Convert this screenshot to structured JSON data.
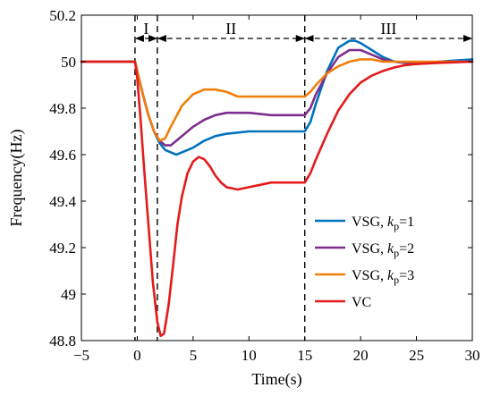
{
  "chart_data": {
    "type": "line",
    "title": "",
    "xlabel": "Time(s)",
    "ylabel": "Frequency(Hz)",
    "xlim": [
      -5,
      30
    ],
    "ylim": [
      48.8,
      50.2
    ],
    "xticks": [
      -5,
      0,
      5,
      10,
      15,
      20,
      25,
      30
    ],
    "xtick_labels": [
      "−5",
      "0",
      "5",
      "10",
      "15",
      "20",
      "25",
      "30"
    ],
    "yticks": [
      48.8,
      49,
      49.2,
      49.4,
      49.6,
      49.8,
      50,
      50.2
    ],
    "ytick_labels": [
      "48.8",
      "49",
      "49.2",
      "49.4",
      "49.6",
      "49.8",
      "50",
      "50.2"
    ],
    "grid": false,
    "legend_position": "lower-right",
    "regions": [
      {
        "label": "I",
        "x_start": -0.2,
        "x_end": 1.8
      },
      {
        "label": "II",
        "x_start": 1.8,
        "x_end": 15
      },
      {
        "label": "III",
        "x_start": 15,
        "x_end": 30
      }
    ],
    "dashed_lines_x": [
      -0.2,
      1.8,
      15
    ],
    "series": [
      {
        "name_prefix": "VSG, ",
        "name_var": "k",
        "name_sub": "p",
        "name_suffix": "=1",
        "color": "#0072BD",
        "x": [
          -5,
          -0.2,
          0,
          0.5,
          1,
          1.5,
          2,
          2.5,
          3,
          3.5,
          4,
          5,
          6,
          7,
          8,
          10,
          12,
          14,
          15,
          15.5,
          16,
          17,
          18,
          19,
          19.5,
          20,
          21,
          22,
          23,
          25,
          27,
          30
        ],
        "y": [
          50,
          50,
          49.96,
          49.86,
          49.77,
          49.7,
          49.65,
          49.62,
          49.61,
          49.6,
          49.61,
          49.63,
          49.66,
          49.68,
          49.69,
          49.7,
          49.7,
          49.7,
          49.7,
          49.74,
          49.82,
          49.96,
          50.06,
          50.09,
          50.09,
          50.08,
          50.05,
          50.02,
          50.0,
          49.99,
          50.0,
          50.01
        ]
      },
      {
        "name_prefix": "VSG, ",
        "name_var": "k",
        "name_sub": "p",
        "name_suffix": "=2",
        "color": "#7E2F8E",
        "x": [
          -5,
          -0.2,
          0,
          0.5,
          1,
          1.5,
          2,
          2.5,
          3,
          4,
          5,
          6,
          7,
          8,
          10,
          12,
          14,
          15,
          15.5,
          16,
          17,
          18,
          19,
          20,
          21,
          22,
          23,
          25,
          27,
          30
        ],
        "y": [
          50,
          50,
          49.96,
          49.86,
          49.77,
          49.7,
          49.66,
          49.64,
          49.64,
          49.68,
          49.72,
          49.75,
          49.77,
          49.78,
          49.78,
          49.77,
          49.77,
          49.77,
          49.8,
          49.86,
          49.95,
          50.02,
          50.05,
          50.05,
          50.03,
          50.01,
          50.0,
          49.99,
          50.0,
          50.0
        ]
      },
      {
        "name_prefix": "VSG, ",
        "name_var": "k",
        "name_sub": "p",
        "name_suffix": "=3",
        "color": "#F07F0A",
        "x": [
          -5,
          -0.2,
          0,
          0.5,
          1,
          1.5,
          2,
          2.5,
          3,
          4,
          5,
          6,
          7,
          8,
          9,
          10,
          12,
          14,
          15,
          15.5,
          16,
          17,
          18,
          19,
          20,
          21,
          22,
          23,
          25,
          30
        ],
        "y": [
          50,
          50,
          49.96,
          49.86,
          49.77,
          49.7,
          49.66,
          49.67,
          49.72,
          49.81,
          49.86,
          49.88,
          49.88,
          49.87,
          49.85,
          49.85,
          49.85,
          49.85,
          49.85,
          49.87,
          49.9,
          49.95,
          49.98,
          50.0,
          50.01,
          50.01,
          50.0,
          50.0,
          50.0,
          50.0
        ]
      },
      {
        "name": "VC",
        "color": "#E31B1B",
        "x": [
          -5,
          -0.2,
          0,
          0.3,
          0.6,
          1,
          1.4,
          1.8,
          2.1,
          2.4,
          2.8,
          3.2,
          3.6,
          4,
          4.5,
          5,
          5.5,
          6,
          6.5,
          7,
          7.5,
          8,
          9,
          10,
          11,
          12,
          13,
          14,
          15,
          15.5,
          16,
          17,
          18,
          19,
          20,
          21,
          22,
          23,
          24,
          25,
          27,
          30
        ],
        "y": [
          50,
          50,
          49.93,
          49.75,
          49.55,
          49.3,
          49.05,
          48.88,
          48.82,
          48.83,
          48.95,
          49.12,
          49.3,
          49.42,
          49.52,
          49.57,
          49.59,
          49.58,
          49.55,
          49.51,
          49.48,
          49.46,
          49.45,
          49.46,
          49.47,
          49.48,
          49.48,
          49.48,
          49.48,
          49.52,
          49.58,
          49.69,
          49.79,
          49.86,
          49.91,
          49.94,
          49.96,
          49.975,
          49.985,
          49.99,
          49.995,
          50.0
        ]
      }
    ]
  }
}
